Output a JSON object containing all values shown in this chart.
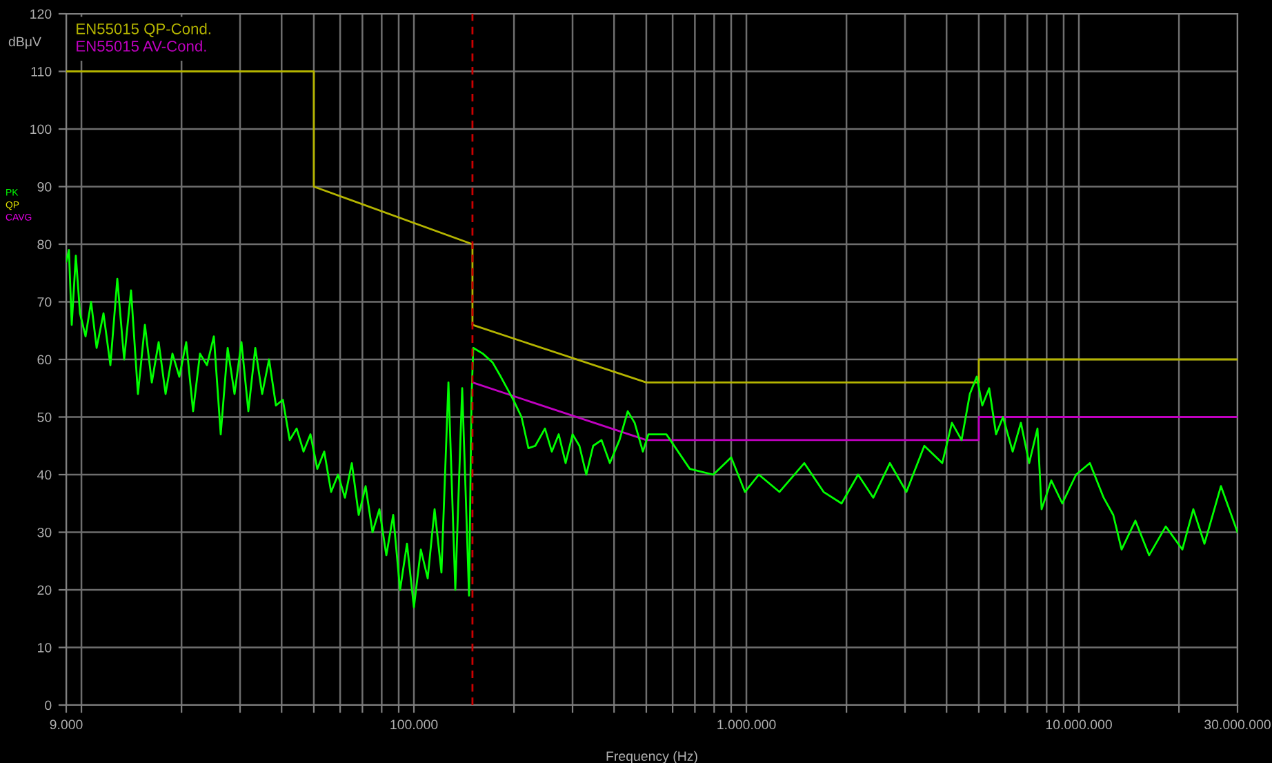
{
  "chart_data": {
    "type": "line",
    "xlabel": "Frequency (Hz)",
    "ylabel": "dBμV",
    "log": "x",
    "grid": true,
    "legend": "top left",
    "marker": "none",
    "line_style": "solid",
    "xlim": [
      9000,
      30000000
    ],
    "ylim": [
      0,
      120
    ],
    "xticks": [
      {
        "value": 9000,
        "label": "9.000"
      },
      {
        "value": 10000,
        "label": null
      },
      {
        "value": 20000,
        "label": null
      },
      {
        "value": 30000,
        "label": null
      },
      {
        "value": 40000,
        "label": null
      },
      {
        "value": 50000,
        "label": null
      },
      {
        "value": 60000,
        "label": null
      },
      {
        "value": 70000,
        "label": null
      },
      {
        "value": 80000,
        "label": null
      },
      {
        "value": 90000,
        "label": null
      },
      {
        "value": 100000,
        "label": "100.000"
      },
      {
        "value": 200000,
        "label": null
      },
      {
        "value": 300000,
        "label": null
      },
      {
        "value": 400000,
        "label": null
      },
      {
        "value": 500000,
        "label": null
      },
      {
        "value": 600000,
        "label": null
      },
      {
        "value": 700000,
        "label": null
      },
      {
        "value": 800000,
        "label": null
      },
      {
        "value": 900000,
        "label": null
      },
      {
        "value": 1000000,
        "label": "1.000.000"
      },
      {
        "value": 2000000,
        "label": null
      },
      {
        "value": 3000000,
        "label": null
      },
      {
        "value": 4000000,
        "label": null
      },
      {
        "value": 5000000,
        "label": null
      },
      {
        "value": 6000000,
        "label": null
      },
      {
        "value": 7000000,
        "label": null
      },
      {
        "value": 8000000,
        "label": null
      },
      {
        "value": 9000000,
        "label": null
      },
      {
        "value": 10000000,
        "label": "10.000.000"
      },
      {
        "value": 20000000,
        "label": null
      },
      {
        "value": 30000000,
        "label": "30.000.000"
      }
    ],
    "yticks": [
      0,
      10,
      20,
      30,
      40,
      50,
      60,
      70,
      80,
      90,
      100,
      110,
      120
    ],
    "ref_lines": [
      {
        "axis": "x",
        "value": 150000,
        "color": "#cc0000",
        "line_style": "dashed"
      }
    ],
    "series": [
      {
        "name": "EN55015 QP-Cond.",
        "color": "#b4b400",
        "x": [
          9000,
          50000,
          50000,
          150000,
          150000,
          500000,
          5000000,
          5000000,
          30000000
        ],
        "values": [
          110,
          110,
          90,
          80,
          66,
          56,
          56,
          60,
          60
        ]
      },
      {
        "name": "EN55015 AV-Cond.",
        "color": "#c000c0",
        "x": [
          150000,
          500000,
          5000000,
          5000000,
          30000000
        ],
        "values": [
          56,
          46,
          46,
          50,
          50
        ]
      },
      {
        "name": "PK",
        "color": "#00ff00",
        "x": [
          9000,
          9170,
          9350,
          9620,
          9900,
          10290,
          10690,
          11110,
          11650,
          12220,
          12820,
          13440,
          14100,
          14790,
          15520,
          16280,
          17070,
          17910,
          18780,
          19700,
          20660,
          21670,
          22730,
          23850,
          25020,
          26240,
          27530,
          28870,
          30290,
          31770,
          33330,
          34960,
          36670,
          38460,
          40340,
          42310,
          44390,
          46560,
          48840,
          51220,
          53730,
          56360,
          59120,
          62010,
          65050,
          68230,
          71570,
          75070,
          78740,
          82600,
          86630,
          90860,
          95310,
          100000,
          104900,
          110000,
          115400,
          121000,
          127000,
          133200,
          139700,
          146500,
          149000,
          150800,
          161200,
          172300,
          182500,
          199000,
          210700,
          221000,
          231700,
          247800,
          259900,
          272600,
          285900,
          300000,
          314600,
          330000,
          346100,
          366700,
          388400,
          415200,
          439700,
          461200,
          488300,
          507200,
          574500,
          675700,
          795100,
          900000,
          990000,
          1090000,
          1257000,
          1493000,
          1707000,
          1933000,
          2167000,
          2408000,
          2701000,
          3029000,
          3429000,
          3883000,
          4151000,
          4438000,
          4700000,
          4930000,
          5122000,
          5373000,
          5636000,
          5912000,
          6322000,
          6693000,
          7088000,
          7507000,
          7725000,
          8260000,
          8915000,
          9810000,
          10790000,
          11870000,
          12690000,
          13440000,
          14790000,
          16270000,
          18250000,
          20470000,
          22090000,
          23860000,
          26750000,
          30000000
        ],
        "values": [
          77,
          79,
          66,
          78,
          68,
          64,
          70,
          62,
          68,
          59,
          74,
          60,
          72,
          54,
          66,
          56,
          63,
          54,
          61,
          57,
          63,
          51,
          61,
          59,
          64,
          47,
          62,
          54,
          63,
          51,
          62,
          54,
          60,
          52,
          53,
          46,
          48,
          44,
          47,
          41,
          44,
          37,
          40,
          36,
          42,
          33,
          38,
          30,
          34,
          26,
          33,
          20,
          28,
          17,
          27,
          22,
          34,
          23,
          56,
          20,
          55,
          19,
          53,
          62,
          61,
          59.5,
          57,
          53,
          50,
          44.6,
          45,
          48,
          44,
          47,
          42,
          47,
          45,
          40,
          45,
          46,
          42,
          46,
          51,
          49,
          44,
          47,
          47,
          41,
          40,
          43,
          37,
          40,
          37,
          42,
          37,
          35,
          40,
          36,
          42,
          37,
          45,
          42,
          49,
          46,
          54,
          57,
          52,
          55,
          47,
          50,
          44,
          49,
          42,
          48,
          34,
          39,
          35,
          40,
          42,
          36,
          33,
          27,
          32,
          26,
          31,
          27,
          34,
          28,
          38,
          30
        ]
      },
      {
        "name": "QP",
        "color": "#e6e600"
      },
      {
        "name": "CAVG",
        "color": "#e600e6"
      }
    ]
  }
}
